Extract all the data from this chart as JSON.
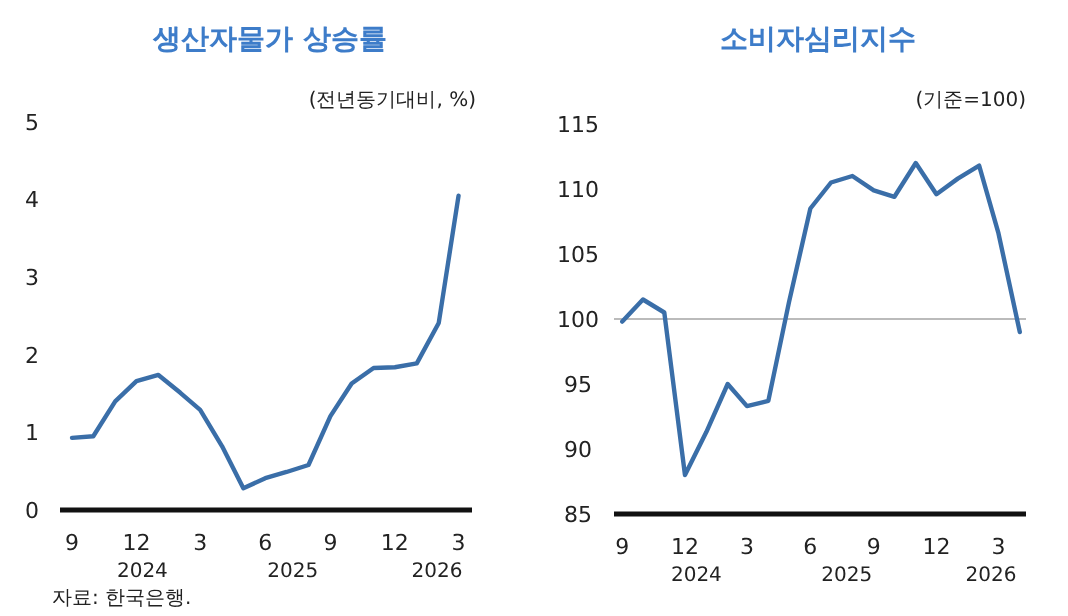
{
  "chart_data": [
    {
      "type": "line",
      "title": "생산자물가 상승률",
      "subtitle": "(전년동기대비, %)",
      "x": [
        "2024-09",
        "2024-10",
        "2024-11",
        "2024-12",
        "2025-01",
        "2025-02",
        "2025-03",
        "2025-04",
        "2025-05",
        "2025-06",
        "2025-07",
        "2025-08",
        "2025-09",
        "2025-10",
        "2025-11",
        "2025-12",
        "2026-01",
        "2026-02",
        "2026-03"
      ],
      "series": [
        {
          "color": "#3a6ea8",
          "values": [
            0.93,
            0.95,
            1.4,
            1.66,
            1.74,
            1.51,
            1.29,
            0.82,
            0.28,
            0.41,
            0.49,
            0.58,
            1.21,
            1.63,
            1.83,
            1.84,
            1.89,
            2.41,
            4.05
          ]
        }
      ],
      "xlim": [
        "2024-08-15",
        "2026-03-20"
      ],
      "xticks": [
        {
          "value": "2024-09",
          "label": "9"
        },
        {
          "value": "2024-12",
          "label": "12"
        },
        {
          "value": "2025-03",
          "label": "3"
        },
        {
          "value": "2025-06",
          "label": "6"
        },
        {
          "value": "2025-09",
          "label": "9"
        },
        {
          "value": "2025-12",
          "label": "12"
        },
        {
          "value": "2026-03",
          "label": "3"
        }
      ],
      "ylim": [
        0,
        5
      ],
      "yticks": [
        0,
        1,
        2,
        3,
        4,
        5
      ],
      "grid": false,
      "line_style": "solid",
      "marker": "none",
      "annotations": [
        "2024",
        "2025",
        "2026",
        "자료: 한국은행."
      ]
    },
    {
      "type": "line",
      "title": "소비자심리지수",
      "subtitle": "(기준=100)",
      "x": [
        "2024-09",
        "2024-10",
        "2024-11",
        "2024-12",
        "2025-01",
        "2025-02",
        "2025-03",
        "2025-04",
        "2025-05",
        "2025-06",
        "2025-07",
        "2025-08",
        "2025-09",
        "2025-10",
        "2025-11",
        "2025-12",
        "2026-01",
        "2026-02",
        "2026-03",
        "2026-04"
      ],
      "series": [
        {
          "color": "#3a6ea8",
          "values": [
            99.8,
            101.5,
            100.5,
            88.0,
            91.3,
            95.0,
            93.3,
            93.7,
            101.3,
            108.5,
            110.5,
            111.0,
            109.9,
            109.4,
            112.0,
            109.6,
            110.8,
            111.8,
            106.6,
            99.0
          ]
        }
      ],
      "xlim": [
        "2024-08-20",
        "2026-04-10"
      ],
      "xticks": [
        {
          "value": "2024-09",
          "label": "9"
        },
        {
          "value": "2024-12",
          "label": "12"
        },
        {
          "value": "2025-03",
          "label": "3"
        },
        {
          "value": "2025-06",
          "label": "6"
        },
        {
          "value": "2025-09",
          "label": "9"
        },
        {
          "value": "2025-12",
          "label": "12"
        },
        {
          "value": "2026-03",
          "label": "3"
        }
      ],
      "ylim": [
        85,
        115
      ],
      "yticks": [
        85,
        90,
        95,
        100,
        105,
        110,
        115
      ],
      "grid": false,
      "line_style": "solid",
      "marker": "none",
      "ref_lines": [
        {
          "axis": "y",
          "value": 100,
          "color": "#bbbbbb"
        }
      ],
      "annotations": [
        "2024",
        "2025",
        "2026"
      ]
    }
  ]
}
